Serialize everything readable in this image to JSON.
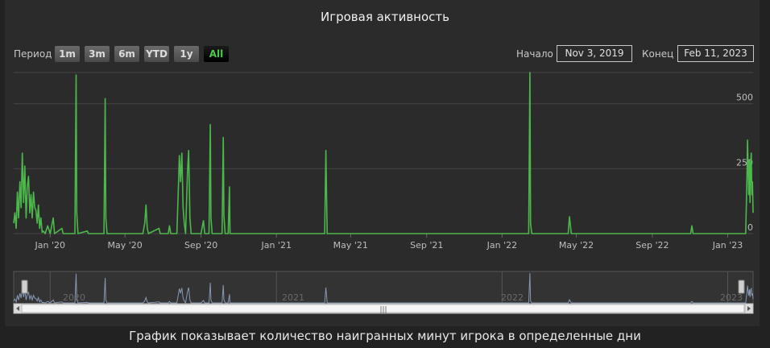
{
  "title": "Игровая активность",
  "caption": "График показывает количество наигранных минут игрока в определенные дни",
  "range_selector": {
    "label": "Период",
    "buttons": [
      "1m",
      "3m",
      "6m",
      "YTD",
      "1y",
      "All"
    ],
    "selected": "All"
  },
  "date_range": {
    "start_label": "Начало",
    "start_value": "Nov 3, 2019",
    "end_label": "Конец",
    "end_value": "Feb 11, 2023"
  },
  "navigator": {
    "year_labels": [
      "2020",
      "2021",
      "2022",
      "2023"
    ],
    "scrollbar_grip": "|||"
  },
  "colors": {
    "series": "#4cb84c",
    "navigator_series": "#8797b3",
    "background": "#2b2b2b",
    "grid": "#444444"
  },
  "chart_data": {
    "type": "line",
    "ylabel": "",
    "ylim": [
      0,
      620
    ],
    "yticks": [
      0,
      250,
      500
    ],
    "xlim": [
      "2019-11-03",
      "2023-02-11"
    ],
    "xticks": [
      {
        "date": "2020-01-01",
        "label": "Jan '20"
      },
      {
        "date": "2020-05-01",
        "label": "May '20"
      },
      {
        "date": "2020-09-01",
        "label": "Sep '20"
      },
      {
        "date": "2021-01-01",
        "label": "Jan '21"
      },
      {
        "date": "2021-05-01",
        "label": "May '21"
      },
      {
        "date": "2021-09-01",
        "label": "Sep '21"
      },
      {
        "date": "2022-01-01",
        "label": "Jan '22"
      },
      {
        "date": "2022-05-01",
        "label": "May '22"
      },
      {
        "date": "2022-09-01",
        "label": "Sep '22"
      },
      {
        "date": "2023-01-01",
        "label": "Jan '23"
      }
    ],
    "grid": true,
    "series": [
      {
        "values": [
          [
            "2019-11-03",
            40
          ],
          [
            "2019-11-05",
            80
          ],
          [
            "2019-11-07",
            20
          ],
          [
            "2019-11-09",
            160
          ],
          [
            "2019-11-11",
            60
          ],
          [
            "2019-11-13",
            200
          ],
          [
            "2019-11-15",
            100
          ],
          [
            "2019-11-17",
            310
          ],
          [
            "2019-11-19",
            120
          ],
          [
            "2019-11-21",
            260
          ],
          [
            "2019-11-23",
            60
          ],
          [
            "2019-11-25",
            180
          ],
          [
            "2019-11-27",
            220
          ],
          [
            "2019-11-29",
            80
          ],
          [
            "2019-12-01",
            150
          ],
          [
            "2019-12-03",
            60
          ],
          [
            "2019-12-05",
            160
          ],
          [
            "2019-12-07",
            100
          ],
          [
            "2019-12-09",
            90
          ],
          [
            "2019-12-11",
            40
          ],
          [
            "2019-12-13",
            110
          ],
          [
            "2019-12-15",
            20
          ],
          [
            "2019-12-17",
            60
          ],
          [
            "2019-12-19",
            5
          ],
          [
            "2019-12-21",
            10
          ],
          [
            "2019-12-24",
            0
          ],
          [
            "2019-12-28",
            30
          ],
          [
            "2020-01-01",
            0
          ],
          [
            "2020-01-06",
            60
          ],
          [
            "2020-01-08",
            0
          ],
          [
            "2020-01-20",
            20
          ],
          [
            "2020-01-22",
            0
          ],
          [
            "2020-02-10",
            0
          ],
          [
            "2020-02-12",
            610
          ],
          [
            "2020-02-13",
            80
          ],
          [
            "2020-02-15",
            0
          ],
          [
            "2020-03-01",
            10
          ],
          [
            "2020-03-03",
            0
          ],
          [
            "2020-03-28",
            0
          ],
          [
            "2020-03-30",
            520
          ],
          [
            "2020-03-31",
            60
          ],
          [
            "2020-04-02",
            0
          ],
          [
            "2020-05-30",
            0
          ],
          [
            "2020-06-02",
            40
          ],
          [
            "2020-06-04",
            110
          ],
          [
            "2020-06-06",
            20
          ],
          [
            "2020-06-08",
            0
          ],
          [
            "2020-06-25",
            20
          ],
          [
            "2020-06-27",
            0
          ],
          [
            "2020-07-10",
            0
          ],
          [
            "2020-07-12",
            30
          ],
          [
            "2020-07-14",
            0
          ],
          [
            "2020-07-24",
            0
          ],
          [
            "2020-07-26",
            150
          ],
          [
            "2020-07-28",
            300
          ],
          [
            "2020-07-30",
            200
          ],
          [
            "2020-08-01",
            310
          ],
          [
            "2020-08-03",
            100
          ],
          [
            "2020-08-05",
            40
          ],
          [
            "2020-08-07",
            0
          ],
          [
            "2020-08-10",
            230
          ],
          [
            "2020-08-12",
            320
          ],
          [
            "2020-08-14",
            60
          ],
          [
            "2020-08-16",
            0
          ],
          [
            "2020-09-01",
            0
          ],
          [
            "2020-09-05",
            50
          ],
          [
            "2020-09-07",
            0
          ],
          [
            "2020-09-14",
            0
          ],
          [
            "2020-09-16",
            420
          ],
          [
            "2020-09-17",
            60
          ],
          [
            "2020-09-19",
            0
          ],
          [
            "2020-10-05",
            0
          ],
          [
            "2020-10-07",
            370
          ],
          [
            "2020-10-08",
            70
          ],
          [
            "2020-10-10",
            0
          ],
          [
            "2020-10-15",
            0
          ],
          [
            "2020-10-17",
            180
          ],
          [
            "2020-10-18",
            0
          ],
          [
            "2021-01-01",
            0
          ],
          [
            "2021-03-20",
            0
          ],
          [
            "2021-03-22",
            320
          ],
          [
            "2021-03-24",
            0
          ],
          [
            "2022-02-13",
            0
          ],
          [
            "2022-02-15",
            620
          ],
          [
            "2022-02-16",
            40
          ],
          [
            "2022-02-18",
            0
          ],
          [
            "2022-04-18",
            0
          ],
          [
            "2022-04-20",
            65
          ],
          [
            "2022-04-23",
            0
          ],
          [
            "2022-11-02",
            0
          ],
          [
            "2022-11-04",
            30
          ],
          [
            "2022-11-06",
            0
          ],
          [
            "2023-01-30",
            0
          ],
          [
            "2023-02-01",
            200
          ],
          [
            "2023-02-02",
            360
          ],
          [
            "2023-02-04",
            150
          ],
          [
            "2023-02-05",
            280
          ],
          [
            "2023-02-06",
            120
          ],
          [
            "2023-02-07",
            260
          ],
          [
            "2023-02-08",
            310
          ],
          [
            "2023-02-09",
            150
          ],
          [
            "2023-02-10",
            200
          ],
          [
            "2023-02-11",
            80
          ]
        ]
      }
    ]
  }
}
